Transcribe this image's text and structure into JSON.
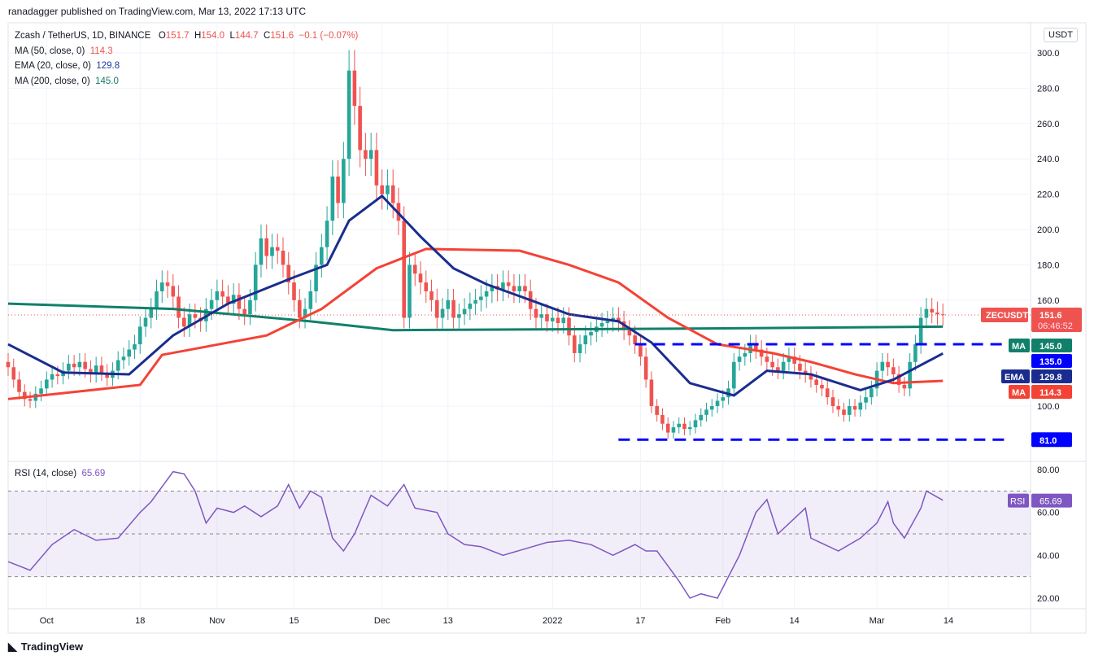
{
  "header": {
    "published": "ranadagger published on TradingView.com, Mar 13, 2022 17:13 UTC"
  },
  "legend": {
    "symbol": "Zcash / TetherUS, 1D, BINANCE",
    "o_label": "O",
    "o": "151.7",
    "h_label": "H",
    "h": "154.0",
    "l_label": "L",
    "l": "144.7",
    "c_label": "C",
    "c": "151.6",
    "change": "−0.1 (−0.07%)",
    "ma50": "MA (50, close, 0)",
    "ma50_val": "114.3",
    "ema20": "EMA (20, close, 0)",
    "ema20_val": "129.8",
    "ma200": "MA (200, close, 0)",
    "ma200_val": "145.0",
    "rsi": "RSI (14, close)",
    "rsi_val": "65.69"
  },
  "footer": {
    "brand": "TradingView"
  },
  "colors": {
    "up": "#26a69a",
    "down": "#ef5350",
    "ma50": "#f44336",
    "ema20": "#1a2d8f",
    "ma200": "#10806b",
    "level": "#0000ff",
    "rsi": "#7e57c2"
  },
  "chart_data": {
    "type": "candlestick",
    "currency_button": "USDT",
    "symbol_tag": "ZECUSDT",
    "last_price": "151.6",
    "countdown": "06:46:52",
    "price_ticks": [
      "300.0",
      "280.0",
      "260.0",
      "240.0",
      "220.0",
      "200.0",
      "180.0",
      "160.0",
      "100.0"
    ],
    "price_range": [
      81,
      305
    ],
    "x_ticks": [
      {
        "label": "Oct",
        "day": 7
      },
      {
        "label": "18",
        "day": 24
      },
      {
        "label": "Nov",
        "day": 38
      },
      {
        "label": "15",
        "day": 52
      },
      {
        "label": "Dec",
        "day": 68
      },
      {
        "label": "13",
        "day": 80
      },
      {
        "label": "2022",
        "day": 99
      },
      {
        "label": "17",
        "day": 115
      },
      {
        "label": "Feb",
        "day": 130
      },
      {
        "label": "14",
        "day": 143
      },
      {
        "label": "Mar",
        "day": 158
      },
      {
        "label": "14",
        "day": 171
      }
    ],
    "closes": [
      122,
      115,
      108,
      104,
      103,
      107,
      110,
      115,
      118,
      117,
      120,
      124,
      122,
      125,
      121,
      118,
      123,
      119,
      116,
      120,
      126,
      128,
      132,
      135,
      145,
      150,
      155,
      165,
      170,
      168,
      162,
      150,
      145,
      152,
      150,
      148,
      155,
      160,
      165,
      162,
      158,
      163,
      155,
      152,
      160,
      180,
      195,
      185,
      190,
      188,
      180,
      170,
      160,
      150,
      155,
      165,
      180,
      190,
      205,
      230,
      215,
      240,
      290,
      270,
      245,
      240,
      245,
      225,
      220,
      225,
      215,
      205,
      150,
      180,
      175,
      170,
      165,
      160,
      150,
      155,
      160,
      150,
      152,
      155,
      158,
      160,
      162,
      165,
      168,
      166,
      170,
      168,
      165,
      168,
      165,
      155,
      150,
      152,
      148,
      150,
      147,
      150,
      140,
      130,
      135,
      140,
      142,
      145,
      147,
      148,
      150,
      148,
      143,
      140,
      135,
      128,
      115,
      100,
      95,
      90,
      85,
      88,
      90,
      87,
      88,
      92,
      95,
      98,
      100,
      103,
      105,
      110,
      125,
      128,
      130,
      135,
      132,
      128,
      125,
      122,
      120,
      125,
      128,
      124,
      120,
      118,
      115,
      112,
      110,
      105,
      100,
      98,
      95,
      100,
      98,
      102,
      105,
      110,
      120,
      125,
      122,
      118,
      112,
      110,
      125,
      135,
      150,
      155,
      153,
      152,
      151.6
    ],
    "ma200": [
      [
        0,
        158
      ],
      [
        30,
        155
      ],
      [
        55,
        148
      ],
      [
        70,
        143
      ],
      [
        130,
        144
      ],
      [
        170,
        145
      ]
    ],
    "ma50": [
      [
        0,
        104
      ],
      [
        24,
        112
      ],
      [
        28,
        129
      ],
      [
        47,
        140
      ],
      [
        57,
        155
      ],
      [
        67,
        178
      ],
      [
        76,
        189
      ],
      [
        93,
        188
      ],
      [
        102,
        180
      ],
      [
        111,
        170
      ],
      [
        120,
        150
      ],
      [
        129,
        135
      ],
      [
        139,
        130
      ],
      [
        146,
        125
      ],
      [
        154,
        118
      ],
      [
        161,
        113
      ],
      [
        170,
        114.3
      ]
    ],
    "ema20": [
      [
        0,
        135
      ],
      [
        10,
        119
      ],
      [
        22,
        118
      ],
      [
        30,
        140
      ],
      [
        40,
        158
      ],
      [
        52,
        173
      ],
      [
        58,
        180
      ],
      [
        62,
        205
      ],
      [
        68,
        219
      ],
      [
        75,
        196
      ],
      [
        81,
        178
      ],
      [
        87,
        169
      ],
      [
        95,
        160
      ],
      [
        102,
        152
      ],
      [
        111,
        148
      ],
      [
        117,
        136
      ],
      [
        124,
        113
      ],
      [
        132,
        106
      ],
      [
        138,
        120
      ],
      [
        146,
        118
      ],
      [
        155,
        109
      ],
      [
        161,
        115
      ],
      [
        170,
        129.8
      ]
    ],
    "levels": [
      {
        "value": 135,
        "label": "135.0",
        "from_day": 114
      },
      {
        "value": 81,
        "label": "81.0",
        "from_day": 111
      }
    ],
    "axis_tags": [
      {
        "name": "MA",
        "value": "145.0",
        "color": "#10806b"
      },
      {
        "name": "",
        "value": "135.0",
        "color": "#0000ff"
      },
      {
        "name": "EMA",
        "value": "129.8",
        "color": "#1a2d8f"
      },
      {
        "name": "MA",
        "value": "114.3",
        "color": "#f44336"
      }
    ],
    "rsi": {
      "ticks": [
        "80.00",
        "60.00",
        "40.00",
        "20.00"
      ],
      "band": [
        30,
        70
      ],
      "mid": 50,
      "tag": "RSI",
      "last": "65.69",
      "points": [
        [
          0,
          37
        ],
        [
          4,
          33
        ],
        [
          8,
          45
        ],
        [
          12,
          52
        ],
        [
          16,
          47
        ],
        [
          20,
          48
        ],
        [
          24,
          60
        ],
        [
          26,
          65
        ],
        [
          28,
          72
        ],
        [
          30,
          79
        ],
        [
          32,
          78
        ],
        [
          34,
          70
        ],
        [
          36,
          55
        ],
        [
          38,
          62
        ],
        [
          41,
          60
        ],
        [
          43,
          63
        ],
        [
          46,
          58
        ],
        [
          49,
          63
        ],
        [
          51,
          73
        ],
        [
          53,
          62
        ],
        [
          55,
          70
        ],
        [
          57,
          67
        ],
        [
          59,
          48
        ],
        [
          61,
          42
        ],
        [
          63,
          50
        ],
        [
          66,
          68
        ],
        [
          69,
          63
        ],
        [
          72,
          73
        ],
        [
          74,
          62
        ],
        [
          76,
          61
        ],
        [
          78,
          60
        ],
        [
          80,
          50
        ],
        [
          83,
          45
        ],
        [
          86,
          44
        ],
        [
          90,
          40
        ],
        [
          94,
          43
        ],
        [
          98,
          46
        ],
        [
          102,
          47
        ],
        [
          106,
          45
        ],
        [
          110,
          40
        ],
        [
          114,
          45
        ],
        [
          116,
          42
        ],
        [
          118,
          42
        ],
        [
          120,
          35
        ],
        [
          122,
          28
        ],
        [
          124,
          20
        ],
        [
          126,
          22
        ],
        [
          129,
          20
        ],
        [
          131,
          30
        ],
        [
          133,
          40
        ],
        [
          136,
          60
        ],
        [
          138,
          66
        ],
        [
          140,
          50
        ],
        [
          145,
          62
        ],
        [
          146,
          48
        ],
        [
          151,
          42
        ],
        [
          155,
          48
        ],
        [
          158,
          55
        ],
        [
          160,
          65
        ],
        [
          161,
          55
        ],
        [
          163,
          48
        ],
        [
          166,
          62
        ],
        [
          167,
          70
        ],
        [
          170,
          65.69
        ]
      ]
    }
  }
}
